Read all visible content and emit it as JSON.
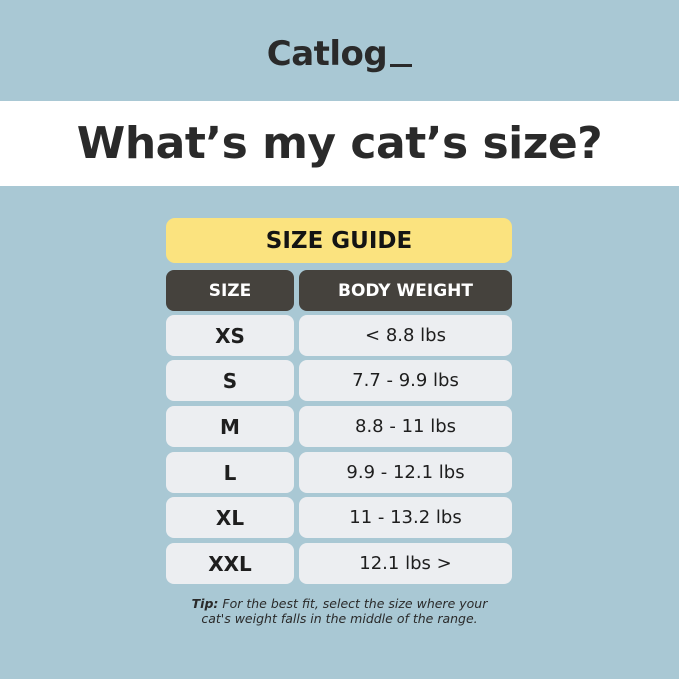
{
  "logo": "Catlog",
  "title": "What’s my cat’s size?",
  "guide_title": "SIZE GUIDE",
  "headers": {
    "size": "SIZE",
    "weight": "BODY WEIGHT"
  },
  "rows": [
    {
      "size": "XS",
      "weight": "< 8.8 lbs"
    },
    {
      "size": "S",
      "weight": "7.7 - 9.9 lbs"
    },
    {
      "size": "M",
      "weight": "8.8 - 11 lbs"
    },
    {
      "size": "L",
      "weight": "9.9 - 12.1 lbs"
    },
    {
      "size": "XL",
      "weight": "11 - 13.2 lbs"
    },
    {
      "size": "XXL",
      "weight": "12.1 lbs >"
    }
  ],
  "tip": {
    "label": "Tip:",
    "line1": "For the best fit, select the size where your",
    "line2": "cat's weight falls in the middle of the range."
  },
  "colors": {
    "background": "#a9c8d4",
    "guide": "#fbe37f",
    "header": "#45423d",
    "cell": "#eceef1"
  }
}
